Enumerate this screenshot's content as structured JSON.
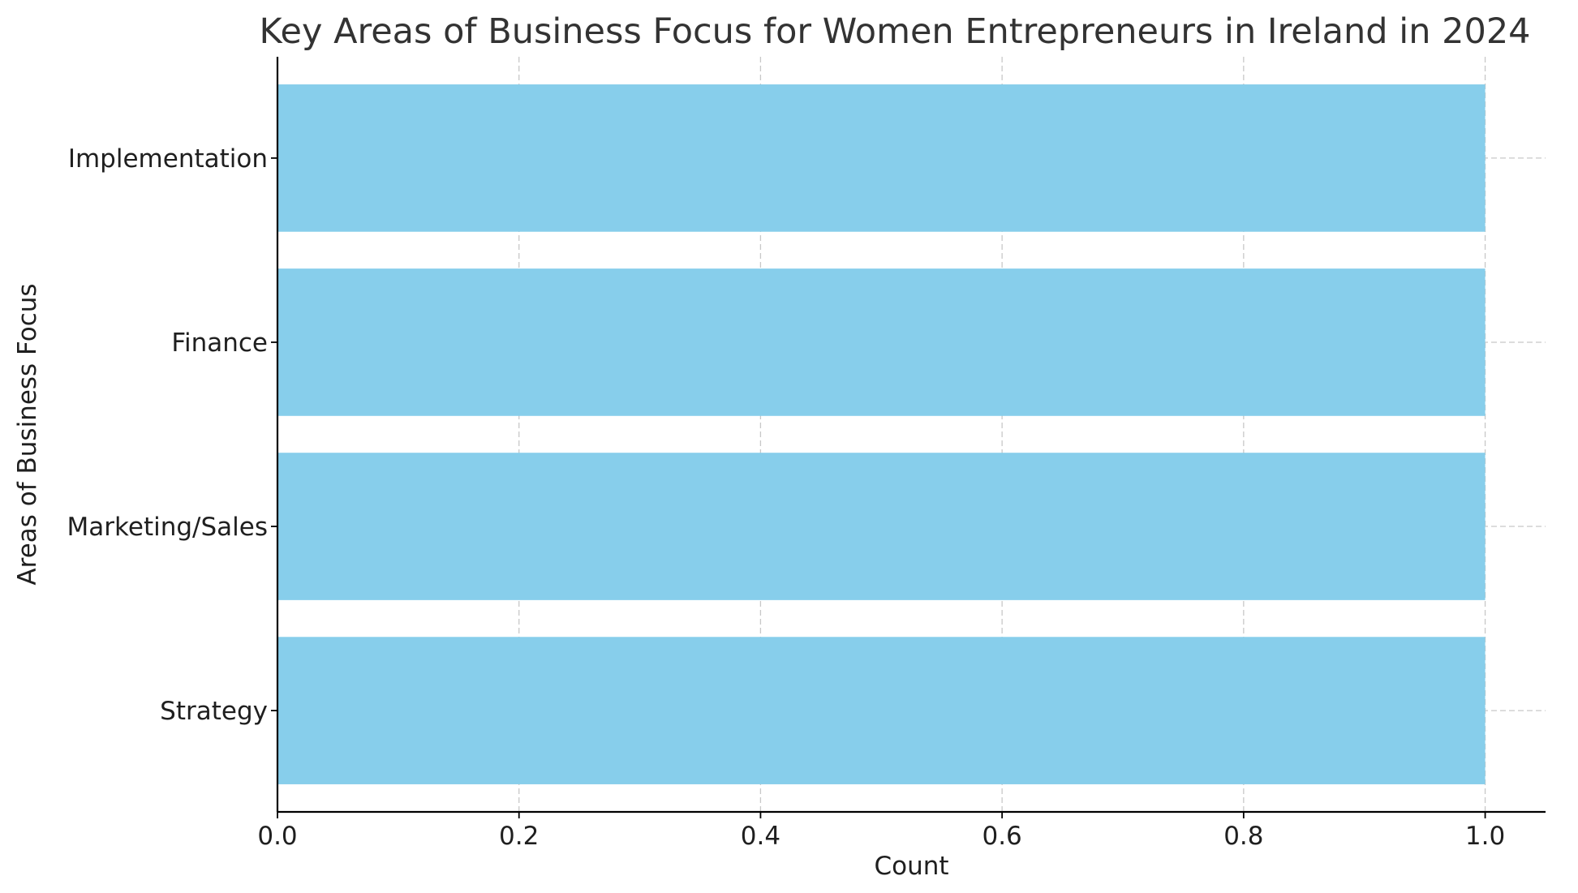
{
  "chart_data": {
    "type": "bar",
    "orientation": "horizontal",
    "title": "Key Areas of Business Focus for Women Entrepreneurs in Ireland in 2024",
    "xlabel": "Count",
    "ylabel": "Areas of Business Focus",
    "categories": [
      "Strategy",
      "Marketing/Sales",
      "Finance",
      "Implementation"
    ],
    "values": [
      1,
      1,
      1,
      1
    ],
    "xlim": [
      0,
      1.05
    ],
    "xticks": [
      0.0,
      0.2,
      0.4,
      0.6,
      0.8,
      1.0
    ],
    "xtick_labels": [
      "0.0",
      "0.2",
      "0.4",
      "0.6",
      "0.8",
      "1.0"
    ],
    "grid": true,
    "bar_color": "#87CEEB",
    "grid_color": "#c8c8c8",
    "axis_color": "#000000"
  }
}
